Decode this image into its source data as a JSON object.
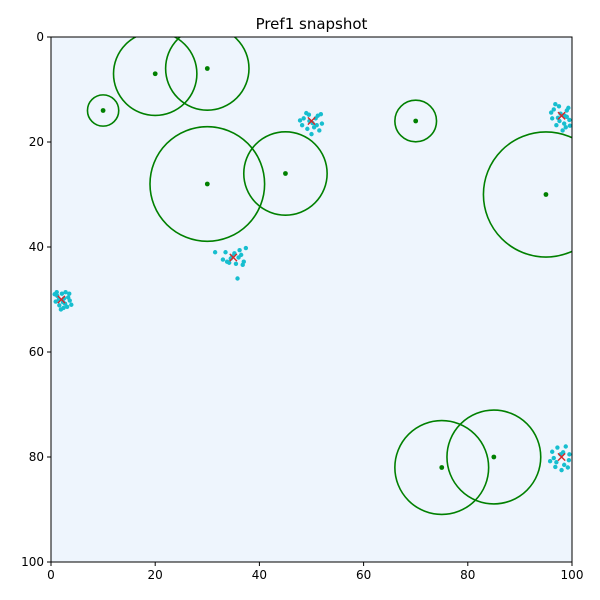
{
  "chart_data": {
    "type": "scatter",
    "title": "Pref1 snapshot",
    "xlabel": "",
    "ylabel": "",
    "xlim": [
      0,
      100
    ],
    "ylim": [
      100,
      0
    ],
    "y_inverted": true,
    "grid": false,
    "aspect": "equal",
    "xticks": [
      0,
      20,
      40,
      60,
      80,
      100
    ],
    "yticks": [
      0,
      20,
      40,
      60,
      80,
      100
    ],
    "colors": {
      "background": "#eef5fd",
      "circle": "#008000",
      "center": "#008000",
      "agent": "#17becf",
      "target": "#d62728"
    },
    "zones": [
      {
        "x": 20,
        "y": 7,
        "r": 8
      },
      {
        "x": 30,
        "y": 6,
        "r": 8
      },
      {
        "x": 10,
        "y": 14,
        "r": 3
      },
      {
        "x": 30,
        "y": 28,
        "r": 11
      },
      {
        "x": 45,
        "y": 26,
        "r": 8
      },
      {
        "x": 70,
        "y": 16,
        "r": 4
      },
      {
        "x": 95,
        "y": 30,
        "r": 12
      },
      {
        "x": 75,
        "y": 82,
        "r": 9
      },
      {
        "x": 85,
        "y": 80,
        "r": 9
      }
    ],
    "targets": [
      {
        "x": 2,
        "y": 50
      },
      {
        "x": 35,
        "y": 42
      },
      {
        "x": 50,
        "y": 16
      },
      {
        "x": 98,
        "y": 15
      },
      {
        "x": 98,
        "y": 80
      }
    ],
    "agents": [
      {
        "x": 1.2,
        "y": 49.3
      },
      {
        "x": 2.8,
        "y": 48.6
      },
      {
        "x": 3.6,
        "y": 50.2
      },
      {
        "x": 1.6,
        "y": 51.1
      },
      {
        "x": 2.4,
        "y": 51.6
      },
      {
        "x": 0.9,
        "y": 50.4
      },
      {
        "x": 3.1,
        "y": 51.4
      },
      {
        "x": 2.1,
        "y": 48.9
      },
      {
        "x": 1.5,
        "y": 50.0
      },
      {
        "x": 3.3,
        "y": 49.6
      },
      {
        "x": 2.7,
        "y": 50.8
      },
      {
        "x": 0.7,
        "y": 49.0
      },
      {
        "x": 3.9,
        "y": 51.0
      },
      {
        "x": 1.9,
        "y": 51.9
      },
      {
        "x": 2.5,
        "y": 49.8
      },
      {
        "x": 1.1,
        "y": 48.6
      },
      {
        "x": 3.5,
        "y": 48.9
      },
      {
        "x": 2.3,
        "y": 50.5
      },
      {
        "x": 33.5,
        "y": 41.0
      },
      {
        "x": 34.2,
        "y": 43.0
      },
      {
        "x": 36.5,
        "y": 41.5
      },
      {
        "x": 35.5,
        "y": 43.2
      },
      {
        "x": 37.0,
        "y": 42.8
      },
      {
        "x": 34.8,
        "y": 41.8
      },
      {
        "x": 36.2,
        "y": 40.6
      },
      {
        "x": 37.4,
        "y": 40.2
      },
      {
        "x": 31.5,
        "y": 41.0
      },
      {
        "x": 35.8,
        "y": 46.0
      },
      {
        "x": 33.0,
        "y": 42.4
      },
      {
        "x": 36.8,
        "y": 43.4
      },
      {
        "x": 34.5,
        "y": 42.2
      },
      {
        "x": 35.2,
        "y": 41.2
      },
      {
        "x": 33.8,
        "y": 42.8
      },
      {
        "x": 36.0,
        "y": 42.0
      },
      {
        "x": 48.5,
        "y": 15.5
      },
      {
        "x": 49.5,
        "y": 14.8
      },
      {
        "x": 51.2,
        "y": 15.0
      },
      {
        "x": 52.0,
        "y": 16.5
      },
      {
        "x": 50.5,
        "y": 17.2
      },
      {
        "x": 49.2,
        "y": 17.5
      },
      {
        "x": 48.2,
        "y": 16.8
      },
      {
        "x": 51.5,
        "y": 17.8
      },
      {
        "x": 50.0,
        "y": 18.5
      },
      {
        "x": 49.0,
        "y": 14.5
      },
      {
        "x": 50.8,
        "y": 15.5
      },
      {
        "x": 47.8,
        "y": 15.9
      },
      {
        "x": 51.8,
        "y": 14.7
      },
      {
        "x": 50.2,
        "y": 16.4
      },
      {
        "x": 49.6,
        "y": 16.0
      },
      {
        "x": 51.0,
        "y": 16.8
      },
      {
        "x": 96.5,
        "y": 13.8
      },
      {
        "x": 97.5,
        "y": 13.2
      },
      {
        "x": 99.0,
        "y": 14.0
      },
      {
        "x": 99.5,
        "y": 15.8
      },
      {
        "x": 98.5,
        "y": 16.5
      },
      {
        "x": 97.0,
        "y": 16.8
      },
      {
        "x": 96.2,
        "y": 15.5
      },
      {
        "x": 98.8,
        "y": 17.2
      },
      {
        "x": 97.8,
        "y": 14.6
      },
      {
        "x": 99.3,
        "y": 13.5
      },
      {
        "x": 96.8,
        "y": 12.8
      },
      {
        "x": 98.2,
        "y": 17.8
      },
      {
        "x": 99.6,
        "y": 16.9
      },
      {
        "x": 97.3,
        "y": 15.4
      },
      {
        "x": 98.6,
        "y": 15.0
      },
      {
        "x": 96.0,
        "y": 14.4
      },
      {
        "x": 97.6,
        "y": 16.0
      },
      {
        "x": 99.0,
        "y": 15.2
      },
      {
        "x": 96.2,
        "y": 79.0
      },
      {
        "x": 97.2,
        "y": 78.2
      },
      {
        "x": 98.8,
        "y": 78.0
      },
      {
        "x": 99.5,
        "y": 79.5
      },
      {
        "x": 98.5,
        "y": 81.5
      },
      {
        "x": 97.0,
        "y": 81.0
      },
      {
        "x": 96.5,
        "y": 80.2
      },
      {
        "x": 99.2,
        "y": 82.0
      },
      {
        "x": 98.0,
        "y": 82.5
      },
      {
        "x": 95.8,
        "y": 80.8
      },
      {
        "x": 97.8,
        "y": 79.5
      },
      {
        "x": 99.4,
        "y": 80.6
      },
      {
        "x": 96.8,
        "y": 81.9
      },
      {
        "x": 98.3,
        "y": 79.1
      }
    ]
  }
}
